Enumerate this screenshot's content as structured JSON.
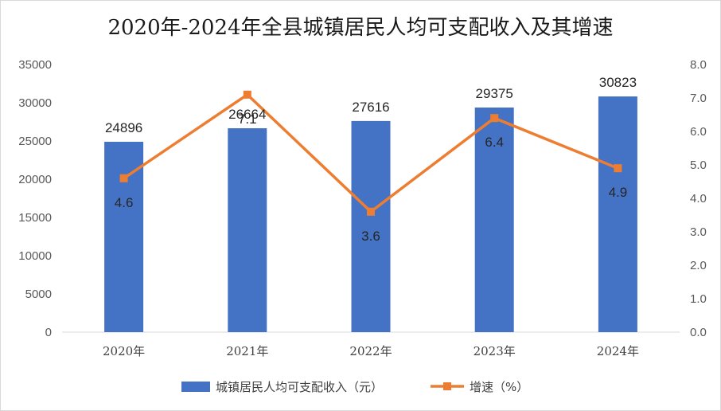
{
  "chart_data": {
    "type": "bar",
    "title": "2020年-2024年全县城镇居民人均可支配收入及其增速",
    "categories": [
      "2020年",
      "2021年",
      "2022年",
      "2023年",
      "2024年"
    ],
    "series": [
      {
        "name": "城镇居民人均可支配收入（元）",
        "type": "bar",
        "axis": "left",
        "color": "#4472C4",
        "values": [
          24896,
          26664,
          27616,
          29375,
          30823
        ],
        "labels": [
          "24896",
          "26664",
          "27616",
          "29375",
          "30823"
        ]
      },
      {
        "name": "增速（%）",
        "type": "line",
        "axis": "right",
        "color": "#ED7D31",
        "marker": "square",
        "values": [
          4.6,
          7.1,
          3.6,
          6.4,
          4.9
        ],
        "labels": [
          "4.6",
          "7.1",
          "3.6",
          "6.4",
          "4.9"
        ]
      }
    ],
    "y_left": {
      "range": [
        0,
        35000
      ],
      "ticks": [
        "0",
        "5000",
        "10000",
        "15000",
        "20000",
        "25000",
        "30000",
        "35000"
      ]
    },
    "y_right": {
      "range": [
        0,
        8
      ],
      "ticks": [
        "0.0",
        "1.0",
        "2.0",
        "3.0",
        "4.0",
        "5.0",
        "6.0",
        "7.0",
        "8.0"
      ]
    },
    "grid": false,
    "legend_position": "bottom"
  }
}
